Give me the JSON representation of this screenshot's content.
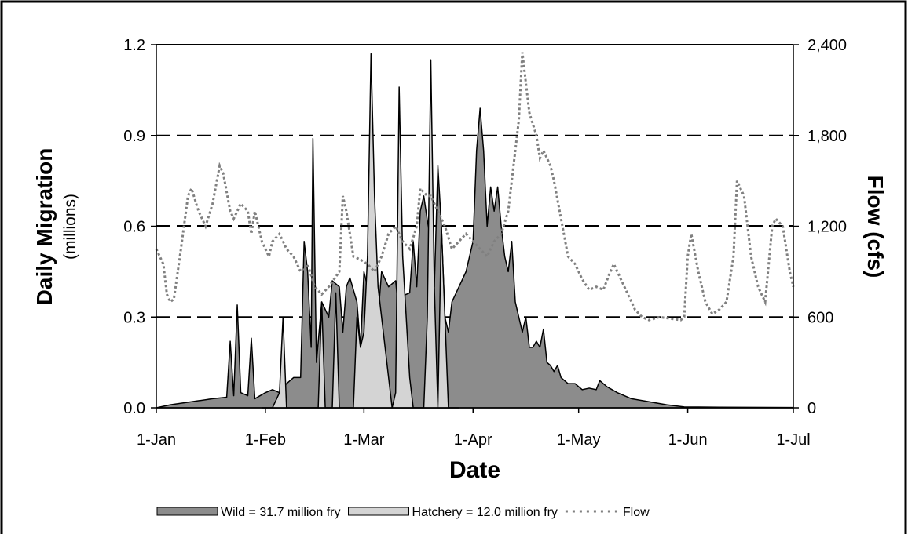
{
  "chart_data": {
    "type": "combo",
    "ylabel": "Daily Migration",
    "ylabel_sub": "(millions)",
    "y2label": "Flow (cfs)",
    "xlabel": "Date",
    "xlim": [
      0,
      181
    ],
    "xticks": [
      {
        "value": 0,
        "label": "1-Jan"
      },
      {
        "value": 31,
        "label": "1-Feb"
      },
      {
        "value": 59,
        "label": "1-Mar"
      },
      {
        "value": 90,
        "label": "1-Apr"
      },
      {
        "value": 120,
        "label": "1-May"
      },
      {
        "value": 151,
        "label": "1-Jun"
      },
      {
        "value": 181,
        "label": "1-Jul"
      }
    ],
    "ylim": [
      0,
      1.2
    ],
    "yticks": [
      {
        "value": 0,
        "label": "0.0"
      },
      0.3,
      0.6,
      0.9,
      1.2
    ],
    "y2lim": [
      0,
      2400
    ],
    "y2ticks": [
      0,
      600,
      {
        "value": 1200,
        "label": "1,200"
      },
      {
        "value": 1800,
        "label": "1,800"
      },
      {
        "value": 2400,
        "label": "2,400"
      }
    ],
    "grid": true,
    "legend": "bottom",
    "series": [
      {
        "name": "Wild = 31.7 million fry",
        "type": "area",
        "color": "#8c8c8c",
        "x": [
          0,
          4,
          10,
          16,
          20,
          21,
          22,
          23,
          24,
          26,
          27,
          28,
          31,
          33,
          35,
          37,
          39,
          41,
          42,
          43,
          44,
          44.5,
          45.5,
          47,
          49,
          50,
          52,
          53,
          54,
          55,
          57,
          58,
          59,
          60,
          61,
          62,
          63,
          64,
          66,
          68,
          69,
          70,
          72,
          73,
          74,
          75,
          76,
          77,
          78,
          79,
          80,
          81,
          82,
          83,
          84,
          86,
          88,
          89,
          90,
          91,
          92,
          93,
          94,
          95,
          96,
          97,
          98,
          99,
          100,
          101,
          102,
          103,
          104,
          105,
          106,
          107,
          108,
          109,
          110,
          111,
          112,
          113,
          114,
          115,
          117,
          119,
          121,
          123,
          125,
          126,
          128,
          131,
          135,
          140,
          145,
          150,
          160,
          181
        ],
        "values": [
          0,
          0.01,
          0.02,
          0.03,
          0.035,
          0.22,
          0.04,
          0.34,
          0.05,
          0.04,
          0.23,
          0.03,
          0.05,
          0.06,
          0.05,
          0.08,
          0.1,
          0.1,
          0.55,
          0.45,
          0.2,
          0.89,
          0.15,
          0.35,
          0.3,
          0.42,
          0.4,
          0.25,
          0.4,
          0.43,
          0.35,
          0.2,
          0.45,
          0.4,
          0.3,
          0.25,
          0.3,
          0.45,
          0.4,
          0.42,
          0.3,
          0.37,
          0.38,
          0.55,
          0.4,
          0.65,
          0.7,
          0.62,
          0.55,
          0.4,
          0.8,
          0.6,
          0.3,
          0.25,
          0.35,
          0.4,
          0.45,
          0.5,
          0.55,
          0.85,
          0.99,
          0.85,
          0.6,
          0.73,
          0.65,
          0.73,
          0.6,
          0.5,
          0.45,
          0.55,
          0.35,
          0.3,
          0.25,
          0.3,
          0.2,
          0.2,
          0.22,
          0.2,
          0.26,
          0.15,
          0.14,
          0.12,
          0.14,
          0.1,
          0.08,
          0.08,
          0.06,
          0.065,
          0.06,
          0.09,
          0.07,
          0.05,
          0.03,
          0.02,
          0.01,
          0.003,
          0.002,
          0.001
        ]
      },
      {
        "name": "Hatchery = 12.0 million fry",
        "type": "area",
        "color": "#d4d4d4",
        "x": [
          30,
          33,
          35,
          36,
          37,
          40,
          46,
          47,
          48,
          50,
          51,
          52,
          56,
          57,
          58,
          59,
          60,
          61,
          62,
          63,
          64,
          65,
          66,
          67,
          68,
          69,
          70,
          71,
          72,
          73,
          76,
          77,
          78,
          79,
          80,
          81,
          82,
          83,
          86
        ],
        "values": [
          0,
          0,
          0.05,
          0.3,
          0,
          0,
          0,
          0.35,
          0,
          0,
          0.38,
          0,
          0,
          0.3,
          0.2,
          0.25,
          0.5,
          1.17,
          0.7,
          0.4,
          0.3,
          0.2,
          0.1,
          0,
          0.05,
          1.06,
          0.5,
          0.3,
          0.1,
          0,
          0,
          0.3,
          1.15,
          0.4,
          0,
          0.6,
          0.3,
          0,
          0
        ]
      },
      {
        "name": "Flow",
        "type": "line",
        "axis": "y2",
        "color": "#808080",
        "x": [
          0,
          2,
          3,
          4,
          5,
          7,
          9,
          10,
          12,
          14,
          16,
          18,
          19,
          21,
          22,
          24,
          26,
          27,
          28,
          30,
          32,
          33,
          35,
          37,
          39,
          41,
          43,
          45,
          47,
          49,
          52,
          53,
          54,
          56,
          58,
          60,
          62,
          64,
          66,
          68,
          70,
          72,
          74,
          75,
          77,
          78,
          80,
          82,
          84,
          86,
          88,
          90,
          92,
          94,
          96,
          98,
          100,
          101,
          103,
          104,
          106,
          108,
          109,
          110,
          112,
          113,
          115,
          117,
          119,
          121,
          123,
          125,
          127,
          129,
          130,
          132,
          134,
          136,
          138,
          140,
          143,
          146,
          149,
          150,
          151,
          152,
          154,
          156,
          158,
          160,
          162,
          164,
          165,
          167,
          169,
          171,
          173,
          175,
          176,
          178,
          180,
          181
        ],
        "values": [
          1050,
          950,
          750,
          700,
          720,
          1050,
          1400,
          1450,
          1300,
          1200,
          1350,
          1600,
          1550,
          1300,
          1250,
          1350,
          1300,
          1150,
          1300,
          1100,
          1000,
          1100,
          1150,
          1050,
          1000,
          900,
          950,
          800,
          750,
          800,
          900,
          1400,
          1300,
          1000,
          980,
          950,
          900,
          1000,
          1150,
          1200,
          1100,
          1050,
          1200,
          1450,
          1400,
          1400,
          1300,
          1200,
          1050,
          1100,
          1150,
          1100,
          1050,
          1000,
          1100,
          1150,
          1300,
          1500,
          1900,
          2350,
          1950,
          1800,
          1650,
          1700,
          1600,
          1500,
          1250,
          1000,
          950,
          850,
          780,
          800,
          780,
          900,
          950,
          850,
          750,
          650,
          600,
          580,
          600,
          590,
          580,
          600,
          1000,
          1150,
          900,
          700,
          620,
          650,
          700,
          1000,
          1500,
          1400,
          1000,
          800,
          700,
          1200,
          1250,
          1200,
          900,
          800
        ]
      }
    ]
  }
}
